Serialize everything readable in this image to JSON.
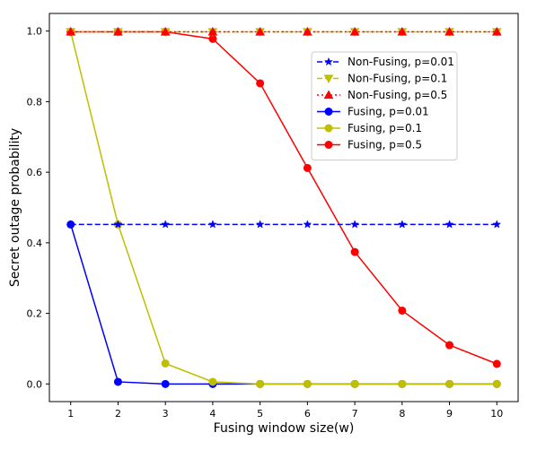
{
  "chart_data": {
    "type": "line",
    "title": "",
    "xlabel": "Fusing window size(w)",
    "ylabel": "Secret outage probability",
    "x": [
      1,
      2,
      3,
      4,
      5,
      6,
      7,
      8,
      9,
      10
    ],
    "x_tick_labels": [
      "1",
      "2",
      "3",
      "4",
      "5",
      "6",
      "7",
      "8",
      "9",
      "10"
    ],
    "xlim": [
      0.55,
      10.45
    ],
    "y_ticks": [
      0.0,
      0.2,
      0.4,
      0.6,
      0.8,
      1.0
    ],
    "y_tick_labels": [
      "0.0",
      "0.2",
      "0.4",
      "0.6",
      "0.8",
      "1.0"
    ],
    "ylim": [
      -0.05,
      1.05
    ],
    "grid": false,
    "legend_position": "upper right",
    "series": [
      {
        "name": "Non-Fusing, p=0.01",
        "color": "#0000ff",
        "line_style": "dashed",
        "marker": "star",
        "values": [
          0.452,
          0.452,
          0.452,
          0.452,
          0.452,
          0.452,
          0.452,
          0.452,
          0.452,
          0.452
        ]
      },
      {
        "name": "Non-Fusing, p=0.1",
        "color": "#bfbf00",
        "line_style": "dashed",
        "marker": "triangle-down",
        "values": [
          0.998,
          0.998,
          0.998,
          0.998,
          0.998,
          0.998,
          0.998,
          0.998,
          0.998,
          0.998
        ]
      },
      {
        "name": "Non-Fusing, p=0.5",
        "color": "#ff0000",
        "line_style": "dotted",
        "marker": "triangle-up",
        "values": [
          0.998,
          0.998,
          0.998,
          0.998,
          0.998,
          0.998,
          0.998,
          0.998,
          0.998,
          0.998
        ]
      },
      {
        "name": "Fusing, p=0.01",
        "color": "#0000ff",
        "line_style": "solid",
        "marker": "circle",
        "values": [
          0.452,
          0.006,
          0.0,
          0.0,
          0.0,
          0.0,
          0.0,
          0.0,
          0.0,
          0.0
        ]
      },
      {
        "name": "Fusing, p=0.1",
        "color": "#bfbf00",
        "line_style": "solid",
        "marker": "circle",
        "values": [
          0.998,
          0.452,
          0.058,
          0.006,
          0.0,
          0.0,
          0.0,
          0.0,
          0.0,
          0.0
        ]
      },
      {
        "name": "Fusing, p=0.5",
        "color": "#ff0000",
        "line_style": "solid",
        "marker": "circle",
        "values": [
          0.998,
          0.998,
          0.998,
          0.978,
          0.852,
          0.612,
          0.374,
          0.208,
          0.11,
          0.057
        ]
      }
    ]
  }
}
